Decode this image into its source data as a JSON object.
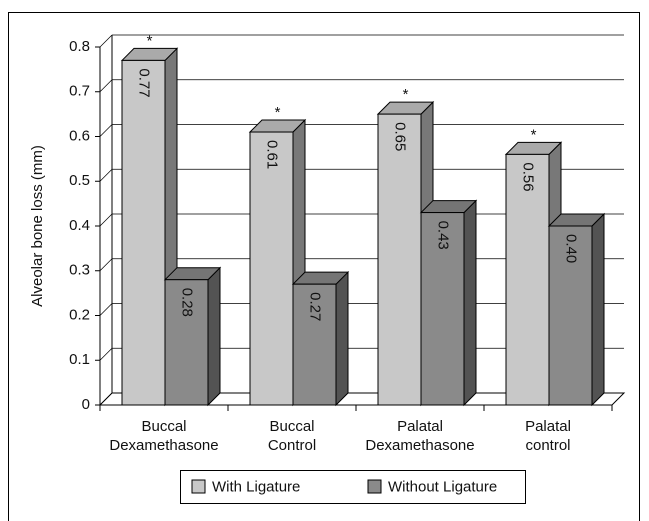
{
  "chart_data": {
    "type": "bar3d",
    "y_label": "Alveolar bone loss (mm)",
    "categories": [
      "Buccal Dexamethasone",
      "Buccal Control",
      "Palatal Dexamethasone",
      "Palatal control"
    ],
    "series": [
      {
        "name": "With Ligature",
        "color": "#c8c8c8",
        "values": [
          0.77,
          0.61,
          0.65,
          0.56
        ],
        "value_labels": [
          "0.77",
          "0.61",
          "0.65",
          "0.56"
        ]
      },
      {
        "name": "Without Ligature",
        "color": "#8a8a8a",
        "values": [
          0.28,
          0.27,
          0.43,
          0.4
        ],
        "value_labels": [
          "0.28",
          "0.27",
          "0.43",
          "0.40"
        ]
      }
    ],
    "annotations": [
      "*",
      "*",
      "*",
      "*"
    ],
    "ylim": [
      0,
      0.8
    ],
    "yticks": [
      0,
      0.1,
      0.2,
      0.3,
      0.4,
      0.5,
      0.6,
      0.7,
      0.8
    ],
    "grid": true
  }
}
